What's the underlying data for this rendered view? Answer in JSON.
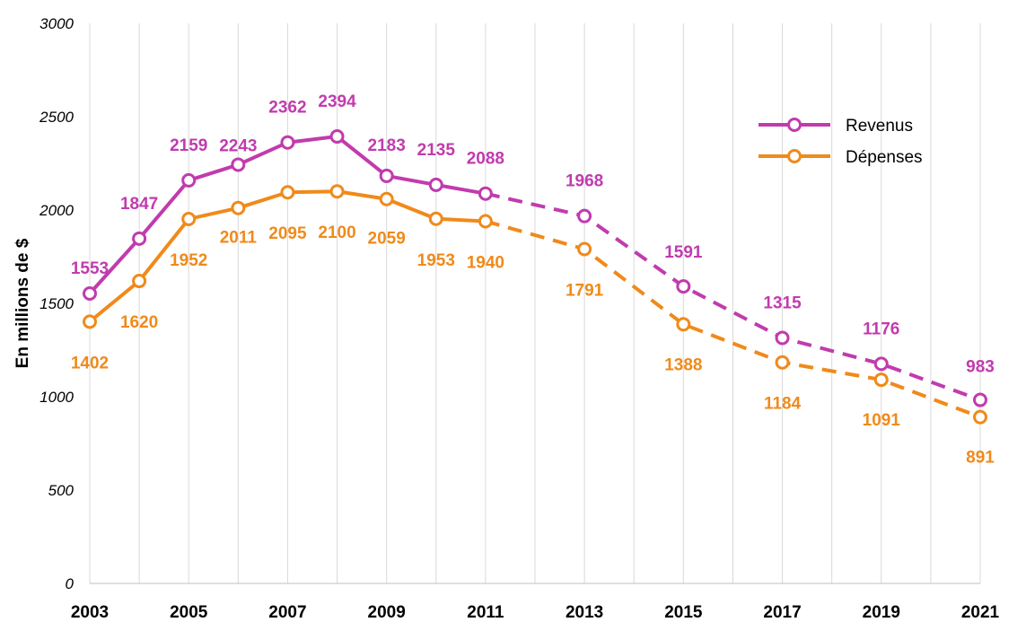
{
  "chart_data": {
    "type": "line",
    "title": "",
    "xlabel": "",
    "ylabel": "En millions de $",
    "ylim": [
      0,
      3000
    ],
    "yticks": [
      0,
      500,
      1000,
      1500,
      2000,
      2500,
      3000
    ],
    "x_tick_labels": [
      "2003",
      "2005",
      "2007",
      "2009",
      "2011",
      "2013",
      "2015",
      "2017",
      "2019",
      "2021"
    ],
    "x": [
      2003,
      2004,
      2005,
      2006,
      2007,
      2008,
      2009,
      2010,
      2011,
      2013,
      2015,
      2017,
      2019,
      2021
    ],
    "series": [
      {
        "name": "Revenus",
        "color": "#C13BAE",
        "values": [
          1553,
          1847,
          2159,
          2243,
          2362,
          2394,
          2183,
          2135,
          2088,
          1968,
          1591,
          1315,
          1176,
          983
        ],
        "labels": [
          "1553",
          "1847",
          "2159",
          "2243",
          "2362",
          "2394",
          "2183",
          "2135",
          "2088",
          "1968",
          "1591",
          "1315",
          "1176",
          "983"
        ]
      },
      {
        "name": "Dépenses",
        "color": "#F08A1A",
        "values": [
          1402,
          1620,
          1952,
          2011,
          2095,
          2100,
          2059,
          1953,
          1940,
          1791,
          1388,
          1184,
          1091,
          891
        ],
        "labels": [
          "1402",
          "1620",
          "1952",
          "2011",
          "2095",
          "2100",
          "2059",
          "1953",
          "1940",
          "1791",
          "1388",
          "1184",
          "1091",
          "891"
        ]
      }
    ],
    "dashed_after_x": 2011,
    "grid": "vertical",
    "legend": "top-right"
  }
}
